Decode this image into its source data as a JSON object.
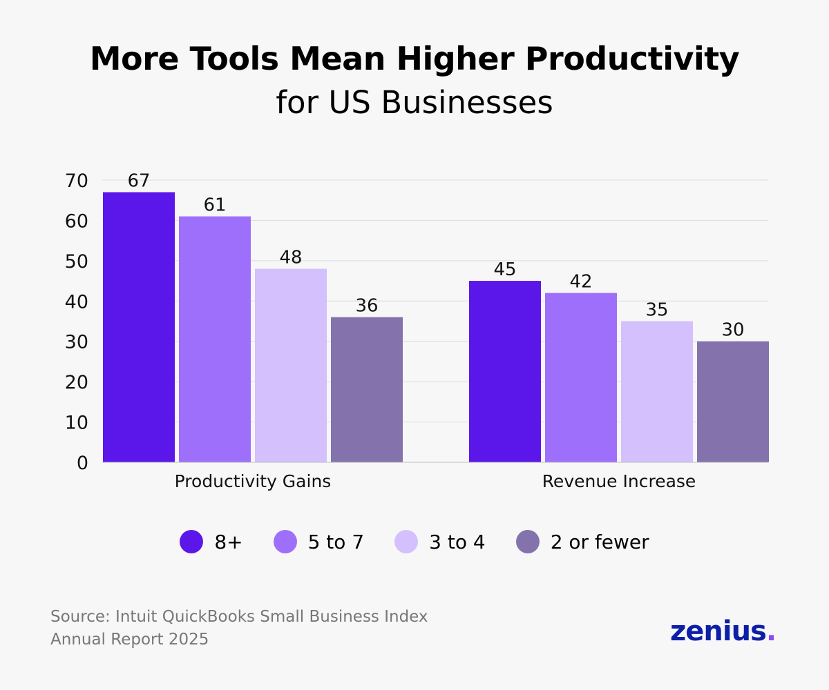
{
  "title": "More Tools Mean Higher Productivity",
  "subtitle": "for US Businesses",
  "source": [
    "Source: Intuit QuickBooks Small Business Index",
    "Annual Report 2025"
  ],
  "logo": {
    "text": "zenius",
    "dot": ".",
    "color": "#0d1fa8",
    "dot_color": "#8a4af5"
  },
  "chart_data": {
    "type": "bar",
    "title": "More Tools Mean Higher Productivity for US Businesses",
    "categories": [
      "Productivity Gains",
      "Revenue Increase"
    ],
    "series": [
      {
        "name": "8+",
        "values": [
          67,
          45
        ],
        "color": "#5b17ea"
      },
      {
        "name": "5 to 7",
        "values": [
          61,
          42
        ],
        "color": "#9d6ffb"
      },
      {
        "name": "3 to 4",
        "values": [
          48,
          35
        ],
        "color": "#d3c0fd"
      },
      {
        "name": "2 or fewer",
        "values": [
          36,
          30
        ],
        "color": "#8472ad"
      }
    ],
    "ylim": [
      0,
      70
    ],
    "yticks": [
      0,
      10,
      20,
      30,
      40,
      50,
      60,
      70
    ],
    "grid": true,
    "legend": "bottom",
    "data_labels": true
  }
}
